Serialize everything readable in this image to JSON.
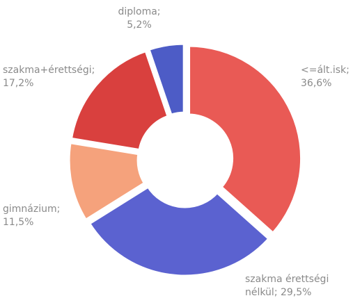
{
  "chart_data": {
    "type": "donut",
    "categories": [
      "<=ált.isk;",
      "szakma érettségi nélkül;",
      "gimnázium;",
      "szakma+érettségi;",
      "diploma;"
    ],
    "values": [
      36.6,
      29.5,
      11.5,
      17.2,
      5.2
    ],
    "value_labels": [
      "36,6%",
      "29,5%",
      "11,5%",
      "17,2%",
      "5,2%"
    ],
    "colors": [
      "#e95a55",
      "#5b62d0",
      "#f5a27c",
      "#d9403e",
      "#4d5cc6"
    ]
  }
}
